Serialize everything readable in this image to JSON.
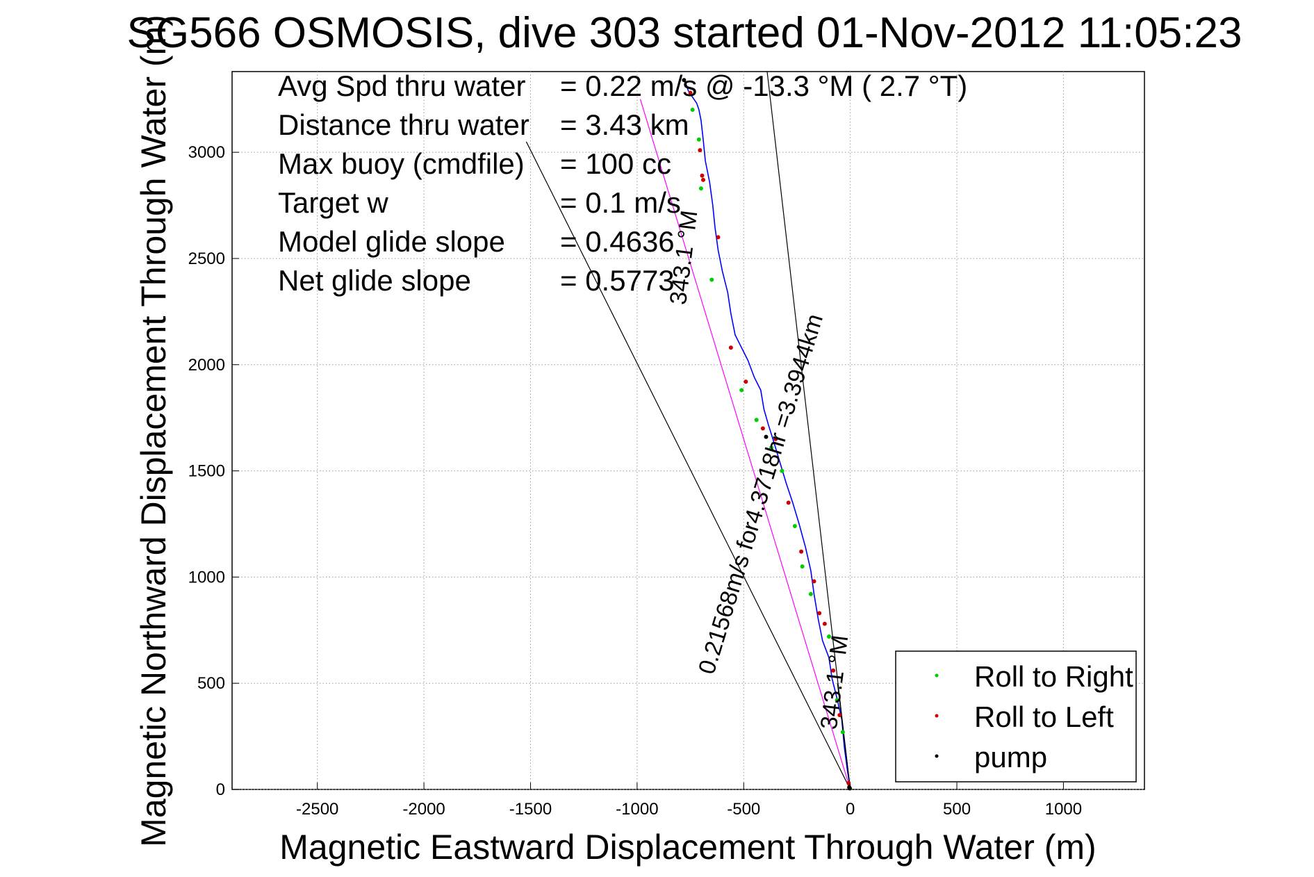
{
  "chart_data": {
    "type": "line",
    "title": "SG566 OSMOSIS, dive 303 started 01-Nov-2012 11:05:23",
    "xlabel": "Magnetic Eastward Displacement Through Water (m)",
    "ylabel": "Magnetic Northward Displacement Through Water (m)",
    "xlim": [
      -2900,
      1380
    ],
    "ylim": [
      0,
      3380
    ],
    "xticks": [
      -2500,
      -2000,
      -1500,
      -1000,
      -500,
      0,
      500,
      1000
    ],
    "yticks": [
      0,
      500,
      1000,
      1500,
      2000,
      2500,
      3000
    ],
    "grid": true,
    "stats": [
      {
        "label": "Avg Spd thru water",
        "value": "=  0.22 m/s @  -13.3 °M (  2.7 °T)"
      },
      {
        "label": "Distance thru water",
        "value": "=  3.43 km"
      },
      {
        "label": "Max buoy (cmdfile)",
        "value": "= 100 cc"
      },
      {
        "label": "Target w",
        "value": "= 0.1 m/s"
      },
      {
        "label": "Model glide slope",
        "value": "= 0.4636"
      },
      {
        "label": "Net glide slope",
        "value": "= 0.5773"
      }
    ],
    "annotations": [
      {
        "text": "343.1 °M",
        "x": -745,
        "y": 2500,
        "angle_deg": 83
      },
      {
        "text": "0.21568m/s for4.3718hr =3.3944km",
        "x": -385,
        "y": 1380,
        "angle_deg": 73
      },
      {
        "text": "343.1 °M",
        "x": -38,
        "y": 500,
        "angle_deg": 83
      }
    ],
    "legend": {
      "position": "bottom-right",
      "entries": [
        {
          "name": "Roll to Right",
          "color": "#00cc00"
        },
        {
          "name": "Roll to Left",
          "color": "#cc0000"
        },
        {
          "name": "pump",
          "color": "#000000"
        }
      ]
    },
    "series": [
      {
        "role": "track",
        "color": "#0000ff",
        "x": [
          0,
          -15,
          -28,
          -40,
          -60,
          -85,
          -100,
          -130,
          -150,
          -170,
          -185,
          -210,
          -240,
          -270,
          -300,
          -330,
          -360,
          -385,
          -405,
          -420,
          -450,
          -480,
          -510,
          -540,
          -560,
          -575,
          -600,
          -620,
          -635,
          -645,
          -660,
          -680,
          -690,
          -700,
          -710,
          -720,
          -740,
          -760,
          -770,
          -780
        ],
        "y": [
          0,
          100,
          200,
          330,
          420,
          520,
          620,
          700,
          800,
          920,
          1030,
          1140,
          1250,
          1350,
          1440,
          1540,
          1640,
          1720,
          1790,
          1880,
          1940,
          2020,
          2080,
          2140,
          2240,
          2340,
          2440,
          2540,
          2650,
          2750,
          2860,
          2960,
          3060,
          3150,
          3200,
          3230,
          3260,
          3290,
          3320,
          3340
        ]
      },
      {
        "role": "reference",
        "color": "#ff00ff",
        "x": [
          0,
          -985
        ],
        "y": [
          0,
          3250
        ]
      },
      {
        "role": "reference",
        "color": "#000000",
        "x": [
          0,
          -1520
        ],
        "y": [
          0,
          3050
        ]
      },
      {
        "role": "reference",
        "color": "#000000",
        "x": [
          0,
          -390
        ],
        "y": [
          0,
          3380
        ]
      },
      {
        "role": "reference",
        "color": "#000000",
        "x": [
          0,
          -60
        ],
        "y": [
          0,
          500
        ]
      }
    ],
    "markers": {
      "roll_right": {
        "color": "#00cc00",
        "x": [
          -35,
          -62,
          -100,
          -185,
          -225,
          -260,
          -320,
          -370,
          -440,
          -510,
          -650,
          -700,
          -710,
          -740
        ],
        "y": [
          270,
          420,
          720,
          920,
          1050,
          1240,
          1500,
          1610,
          1740,
          1880,
          2400,
          2830,
          3060,
          3200
        ]
      },
      "roll_left": {
        "color": "#cc0000",
        "x": [
          -8,
          -50,
          -80,
          -120,
          -145,
          -170,
          -230,
          -290,
          -350,
          -410,
          -490,
          -560,
          -620,
          -690,
          -695,
          -705,
          -750
        ],
        "y": [
          30,
          350,
          560,
          780,
          830,
          980,
          1120,
          1350,
          1650,
          1700,
          1920,
          2080,
          2600,
          2870,
          2890,
          3010,
          3280
        ]
      },
      "pump": {
        "color": "#000000",
        "x": [
          -780,
          -395,
          -5,
          -2
        ],
        "y": [
          3340,
          1660,
          10,
          5
        ]
      }
    }
  }
}
